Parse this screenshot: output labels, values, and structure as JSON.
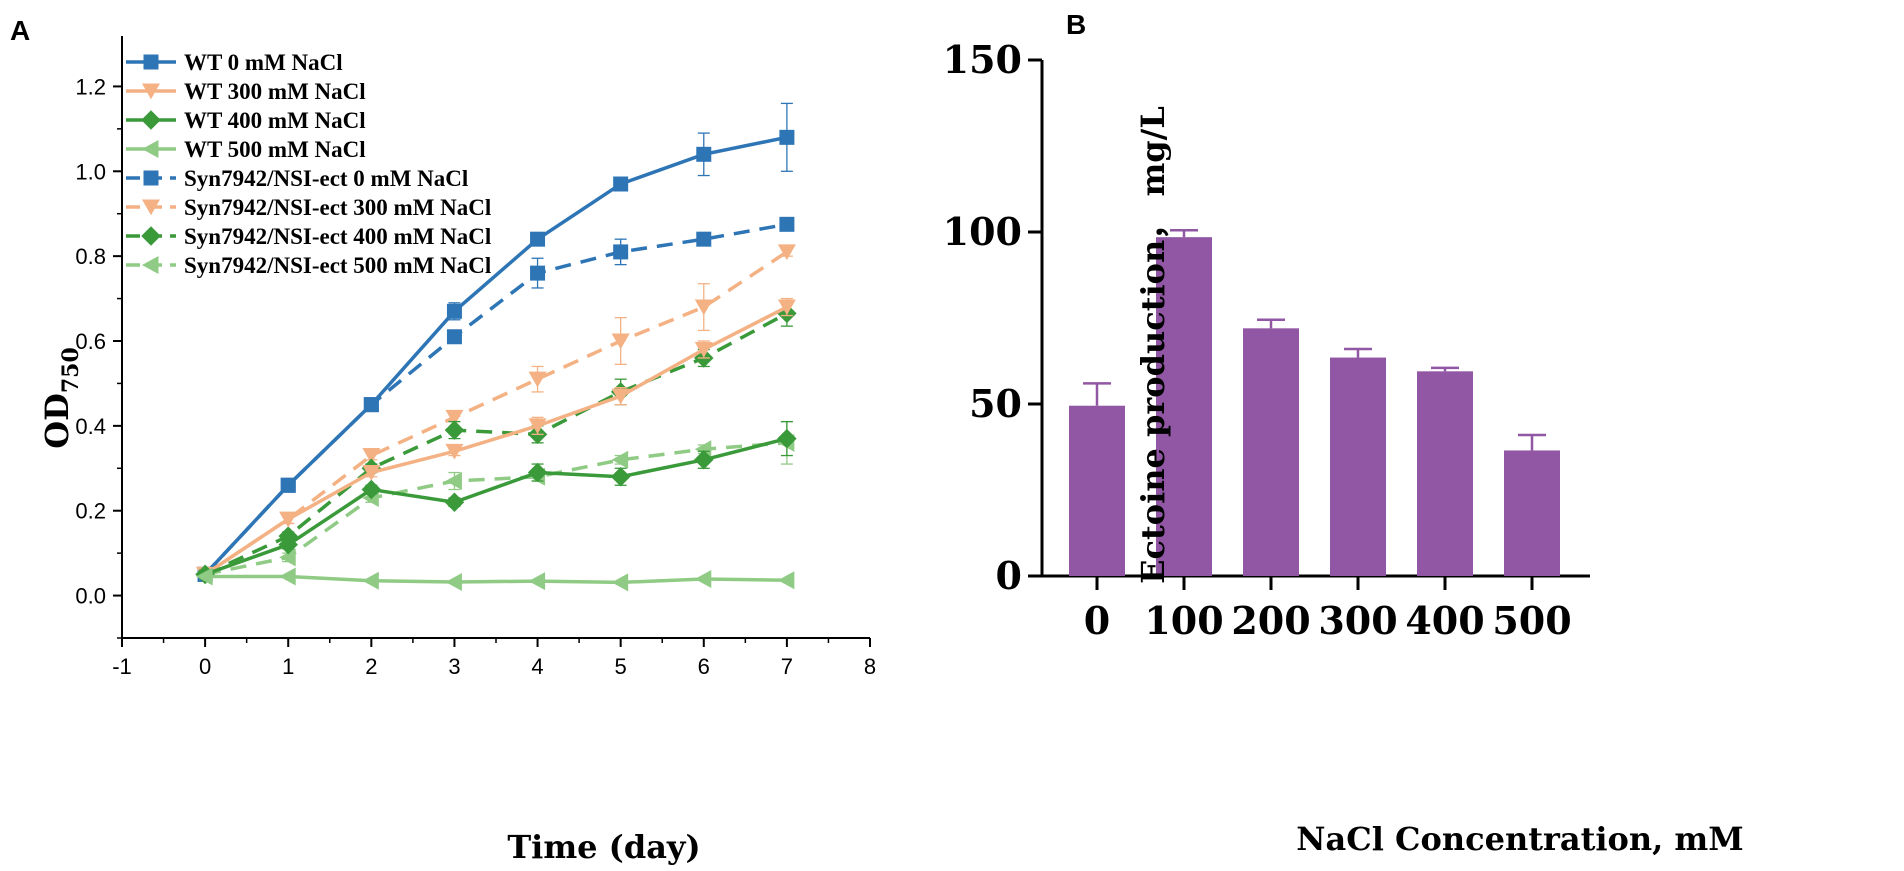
{
  "colors": {
    "wt0": "#2E75B6",
    "wt300": "#F4B183",
    "wt400": "#3A9A3A",
    "wt500": "#8FCB84",
    "bar": "#9157A4",
    "axis": "#000000"
  },
  "chart_data": [
    {
      "panel": "A",
      "type": "line",
      "xlabel": "Time (day)",
      "ylabel": "OD",
      "ylabel_sub": "750",
      "xlim": [
        -1,
        8
      ],
      "ylim": [
        -0.1,
        1.3
      ],
      "xticks": [
        "-1",
        "0",
        "1",
        "2",
        "3",
        "4",
        "5",
        "6",
        "7",
        "8"
      ],
      "yticks": [
        "0.0",
        "0.2",
        "0.4",
        "0.6",
        "0.8",
        "1.0",
        "1.2"
      ],
      "legend_position": "top-left",
      "x": [
        0,
        1,
        2,
        3,
        4,
        5,
        6,
        7
      ],
      "series": [
        {
          "name": "WT 0 mM NaCl",
          "color": "#2E75B6",
          "marker": "square",
          "dash": false,
          "values": [
            0.05,
            0.26,
            0.45,
            0.67,
            0.84,
            0.97,
            1.04,
            1.08
          ],
          "errors": [
            0.01,
            0.01,
            0.01,
            0.02,
            0.01,
            0.015,
            0.05,
            0.08
          ]
        },
        {
          "name": "WT 300 mM NaCl",
          "color": "#F4B183",
          "marker": "triangle-down",
          "dash": false,
          "values": [
            0.05,
            0.18,
            0.29,
            0.34,
            0.4,
            0.47,
            0.58,
            0.68
          ],
          "errors": [
            0.01,
            0.01,
            0.01,
            0.01,
            0.02,
            0.02,
            0.02,
            0.02
          ]
        },
        {
          "name": "WT 400 mM NaCl",
          "color": "#3A9A3A",
          "marker": "diamond",
          "dash": false,
          "values": [
            0.05,
            0.12,
            0.25,
            0.22,
            0.29,
            0.28,
            0.32,
            0.37
          ],
          "errors": [
            0.01,
            0.01,
            0.01,
            0.01,
            0.02,
            0.02,
            0.02,
            0.04
          ]
        },
        {
          "name": "WT 500 mM NaCl",
          "color": "#8FCB84",
          "marker": "triangle-left",
          "dash": false,
          "values": [
            0.045,
            0.045,
            0.035,
            0.032,
            0.034,
            0.031,
            0.039,
            0.036
          ],
          "errors": [
            0.005,
            0.005,
            0.005,
            0.005,
            0.005,
            0.005,
            0.005,
            0.005
          ]
        },
        {
          "name": "Syn7942/NSI-ect 0 mM NaCl",
          "color": "#2E75B6",
          "marker": "square",
          "dash": true,
          "values": [
            0.05,
            0.26,
            0.45,
            0.61,
            0.76,
            0.81,
            0.84,
            0.875
          ],
          "errors": [
            0.01,
            0.01,
            0.01,
            0.01,
            0.035,
            0.03,
            0.01,
            0.01
          ]
        },
        {
          "name": "Syn7942/NSI-ect 300 mM NaCl",
          "color": "#F4B183",
          "marker": "triangle-down",
          "dash": true,
          "values": [
            0.05,
            0.18,
            0.33,
            0.42,
            0.51,
            0.6,
            0.68,
            0.81
          ],
          "errors": [
            0.01,
            0.01,
            0.01,
            0.01,
            0.03,
            0.055,
            0.055,
            0.01
          ]
        },
        {
          "name": "Syn7942/NSI-ect 400 mM NaCl",
          "color": "#3A9A3A",
          "marker": "diamond",
          "dash": true,
          "values": [
            0.05,
            0.14,
            0.3,
            0.39,
            0.38,
            0.48,
            0.56,
            0.665
          ],
          "errors": [
            0.01,
            0.01,
            0.01,
            0.02,
            0.02,
            0.03,
            0.02,
            0.03
          ]
        },
        {
          "name": "Syn7942/NSI-ect 500 mM NaCl",
          "color": "#8FCB84",
          "marker": "triangle-left",
          "dash": true,
          "values": [
            0.05,
            0.09,
            0.23,
            0.27,
            0.28,
            0.32,
            0.345,
            0.36
          ],
          "errors": [
            0.01,
            0.01,
            0.01,
            0.02,
            0.01,
            0.01,
            0.01,
            0.05
          ]
        }
      ]
    },
    {
      "panel": "B",
      "type": "bar",
      "xlabel": "NaCl Concentration, mM",
      "ylabel": "Ectoine production， mg/L",
      "ylim": [
        0,
        150
      ],
      "yticks": [
        "0",
        "50",
        "100",
        "150"
      ],
      "categories": [
        "0",
        "100",
        "200",
        "300",
        "400",
        "500"
      ],
      "values": [
        49.5,
        98.5,
        72,
        63.5,
        59.5,
        36.5
      ],
      "errors": [
        6.5,
        2,
        2.5,
        2.5,
        1,
        4.5
      ],
      "color": "#9157A4"
    }
  ]
}
